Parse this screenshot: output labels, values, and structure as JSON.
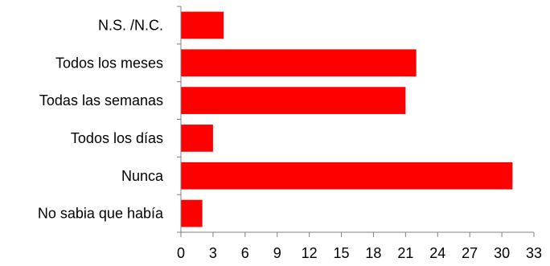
{
  "chart_data": {
    "type": "bar",
    "orientation": "horizontal",
    "categories": [
      "N.S. /N.C.",
      "Todos los meses",
      "Todas las semanas",
      "Todos los días",
      "Nunca",
      "No sabia que había"
    ],
    "values": [
      4,
      22,
      21,
      3,
      31,
      2
    ],
    "xlim": [
      0,
      33
    ],
    "xticks": [
      "0",
      "3",
      "6",
      "9",
      "12",
      "15",
      "18",
      "21",
      "24",
      "27",
      "30",
      "33"
    ],
    "grid": false,
    "legend": "none",
    "colors": {
      "bar": "#ff0000",
      "axis": "#7f7f7f",
      "text": "#000000"
    }
  }
}
